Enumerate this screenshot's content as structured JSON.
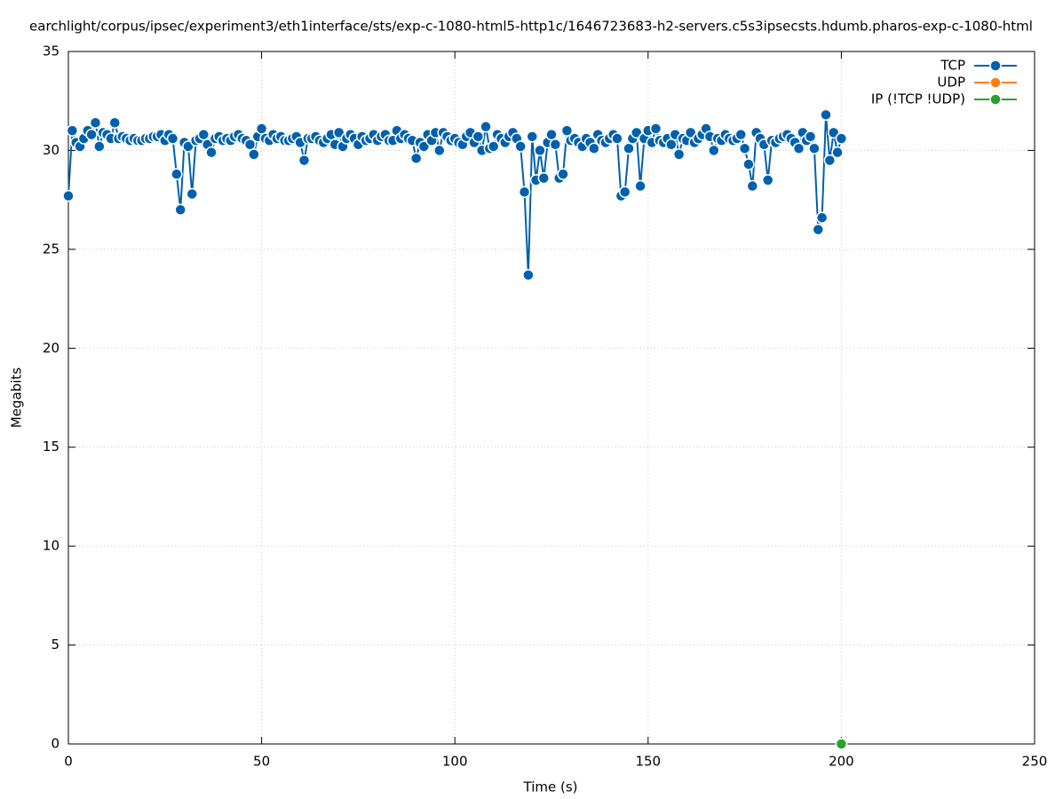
{
  "chart_data": {
    "type": "line",
    "title": "earchlight/corpus/ipsec/experiment3/eth1interface/sts/exp-c-1080-html5-http1c/1646723683-h2-servers.c5s3ipsecsts.hdumb.pharos-exp-c-1080-html",
    "xlabel": "Time (s)",
    "ylabel": "Megabits",
    "xlim": [
      0,
      250
    ],
    "xticks": [
      0,
      50,
      100,
      150,
      200,
      250
    ],
    "ylim": [
      0,
      35
    ],
    "yticks": [
      0,
      5,
      10,
      15,
      20,
      25,
      30,
      35
    ],
    "grid": true,
    "legend": "top-right",
    "series": [
      {
        "name": "TCP",
        "color": "#0060ad",
        "x": [
          0,
          1,
          2,
          3,
          4,
          5,
          6,
          7,
          8,
          9,
          10,
          11,
          12,
          13,
          14,
          15,
          16,
          17,
          18,
          19,
          20,
          21,
          22,
          23,
          24,
          25,
          26,
          27,
          28,
          29,
          30,
          31,
          32,
          33,
          34,
          35,
          36,
          37,
          38,
          39,
          40,
          41,
          42,
          43,
          44,
          45,
          46,
          47,
          48,
          49,
          50,
          51,
          52,
          53,
          54,
          55,
          56,
          57,
          58,
          59,
          60,
          61,
          62,
          63,
          64,
          65,
          66,
          67,
          68,
          69,
          70,
          71,
          72,
          73,
          74,
          75,
          76,
          77,
          78,
          79,
          80,
          81,
          82,
          83,
          84,
          85,
          86,
          87,
          88,
          89,
          90,
          91,
          92,
          93,
          94,
          95,
          96,
          97,
          98,
          99,
          100,
          101,
          102,
          103,
          104,
          105,
          106,
          107,
          108,
          109,
          110,
          111,
          112,
          113,
          114,
          115,
          116,
          117,
          118,
          119,
          120,
          121,
          122,
          123,
          124,
          125,
          126,
          127,
          128,
          129,
          130,
          131,
          132,
          133,
          134,
          135,
          136,
          137,
          138,
          139,
          140,
          141,
          142,
          143,
          144,
          145,
          146,
          147,
          148,
          149,
          150,
          151,
          152,
          153,
          154,
          155,
          156,
          157,
          158,
          159,
          160,
          161,
          162,
          163,
          164,
          165,
          166,
          167,
          168,
          169,
          170,
          171,
          172,
          173,
          174,
          175,
          176,
          177,
          178,
          179,
          180,
          181,
          182,
          183,
          184,
          185,
          186,
          187,
          188,
          189,
          190,
          191,
          192,
          193,
          194,
          195,
          196,
          197,
          198,
          199,
          200
        ],
        "values": [
          27.7,
          31.0,
          30.4,
          30.2,
          30.6,
          31.0,
          30.8,
          31.4,
          30.2,
          30.9,
          30.8,
          30.6,
          31.4,
          30.6,
          30.7,
          30.6,
          30.5,
          30.6,
          30.5,
          30.5,
          30.6,
          30.6,
          30.7,
          30.7,
          30.8,
          30.5,
          30.8,
          30.6,
          28.8,
          27.0,
          30.4,
          30.2,
          27.8,
          30.5,
          30.6,
          30.8,
          30.3,
          29.9,
          30.6,
          30.7,
          30.5,
          30.6,
          30.5,
          30.7,
          30.8,
          30.6,
          30.5,
          30.3,
          29.8,
          30.7,
          31.1,
          30.6,
          30.5,
          30.8,
          30.6,
          30.7,
          30.5,
          30.5,
          30.6,
          30.7,
          30.4,
          29.5,
          30.6,
          30.6,
          30.7,
          30.5,
          30.4,
          30.6,
          30.8,
          30.3,
          30.9,
          30.2,
          30.6,
          30.8,
          30.6,
          30.3,
          30.7,
          30.5,
          30.6,
          30.8,
          30.5,
          30.7,
          30.8,
          30.5,
          30.5,
          31.0,
          30.6,
          30.8,
          30.6,
          30.5,
          29.6,
          30.4,
          30.2,
          30.8,
          30.5,
          30.9,
          30.0,
          30.9,
          30.7,
          30.5,
          30.6,
          30.4,
          30.3,
          30.7,
          30.9,
          30.4,
          30.7,
          30.0,
          31.2,
          30.1,
          30.2,
          30.8,
          30.6,
          30.4,
          30.7,
          30.9,
          30.6,
          30.2,
          27.9,
          23.7,
          30.7,
          28.5,
          30.0,
          28.6,
          30.4,
          30.8,
          30.3,
          28.6,
          28.8,
          31.0,
          30.5,
          30.6,
          30.4,
          30.2,
          30.6,
          30.4,
          30.1,
          30.8,
          30.5,
          30.4,
          30.6,
          30.8,
          30.6,
          27.7,
          27.9,
          30.1,
          30.6,
          30.9,
          28.2,
          30.6,
          31.0,
          30.4,
          31.1,
          30.5,
          30.4,
          30.6,
          30.3,
          30.8,
          29.8,
          30.6,
          30.5,
          30.9,
          30.4,
          30.6,
          30.8,
          31.1,
          30.7,
          30.0,
          30.6,
          30.5,
          30.8,
          30.6,
          30.5,
          30.6,
          30.8,
          30.1,
          29.3,
          28.2,
          30.9,
          30.6,
          30.3,
          28.5,
          30.5,
          30.4,
          30.6,
          30.7,
          30.8,
          30.6,
          30.4,
          30.1,
          30.9,
          30.5,
          30.7,
          30.1,
          26.0,
          26.6,
          31.8,
          29.5,
          30.9,
          29.9,
          30.6
        ]
      },
      {
        "name": "UDP",
        "color": "#ff7f0e",
        "x": [
          200
        ],
        "values": [
          0
        ]
      },
      {
        "name": "IP (!TCP  !UDP)",
        "color": "#2ca02c",
        "x": [
          200
        ],
        "values": [
          0
        ]
      }
    ]
  }
}
